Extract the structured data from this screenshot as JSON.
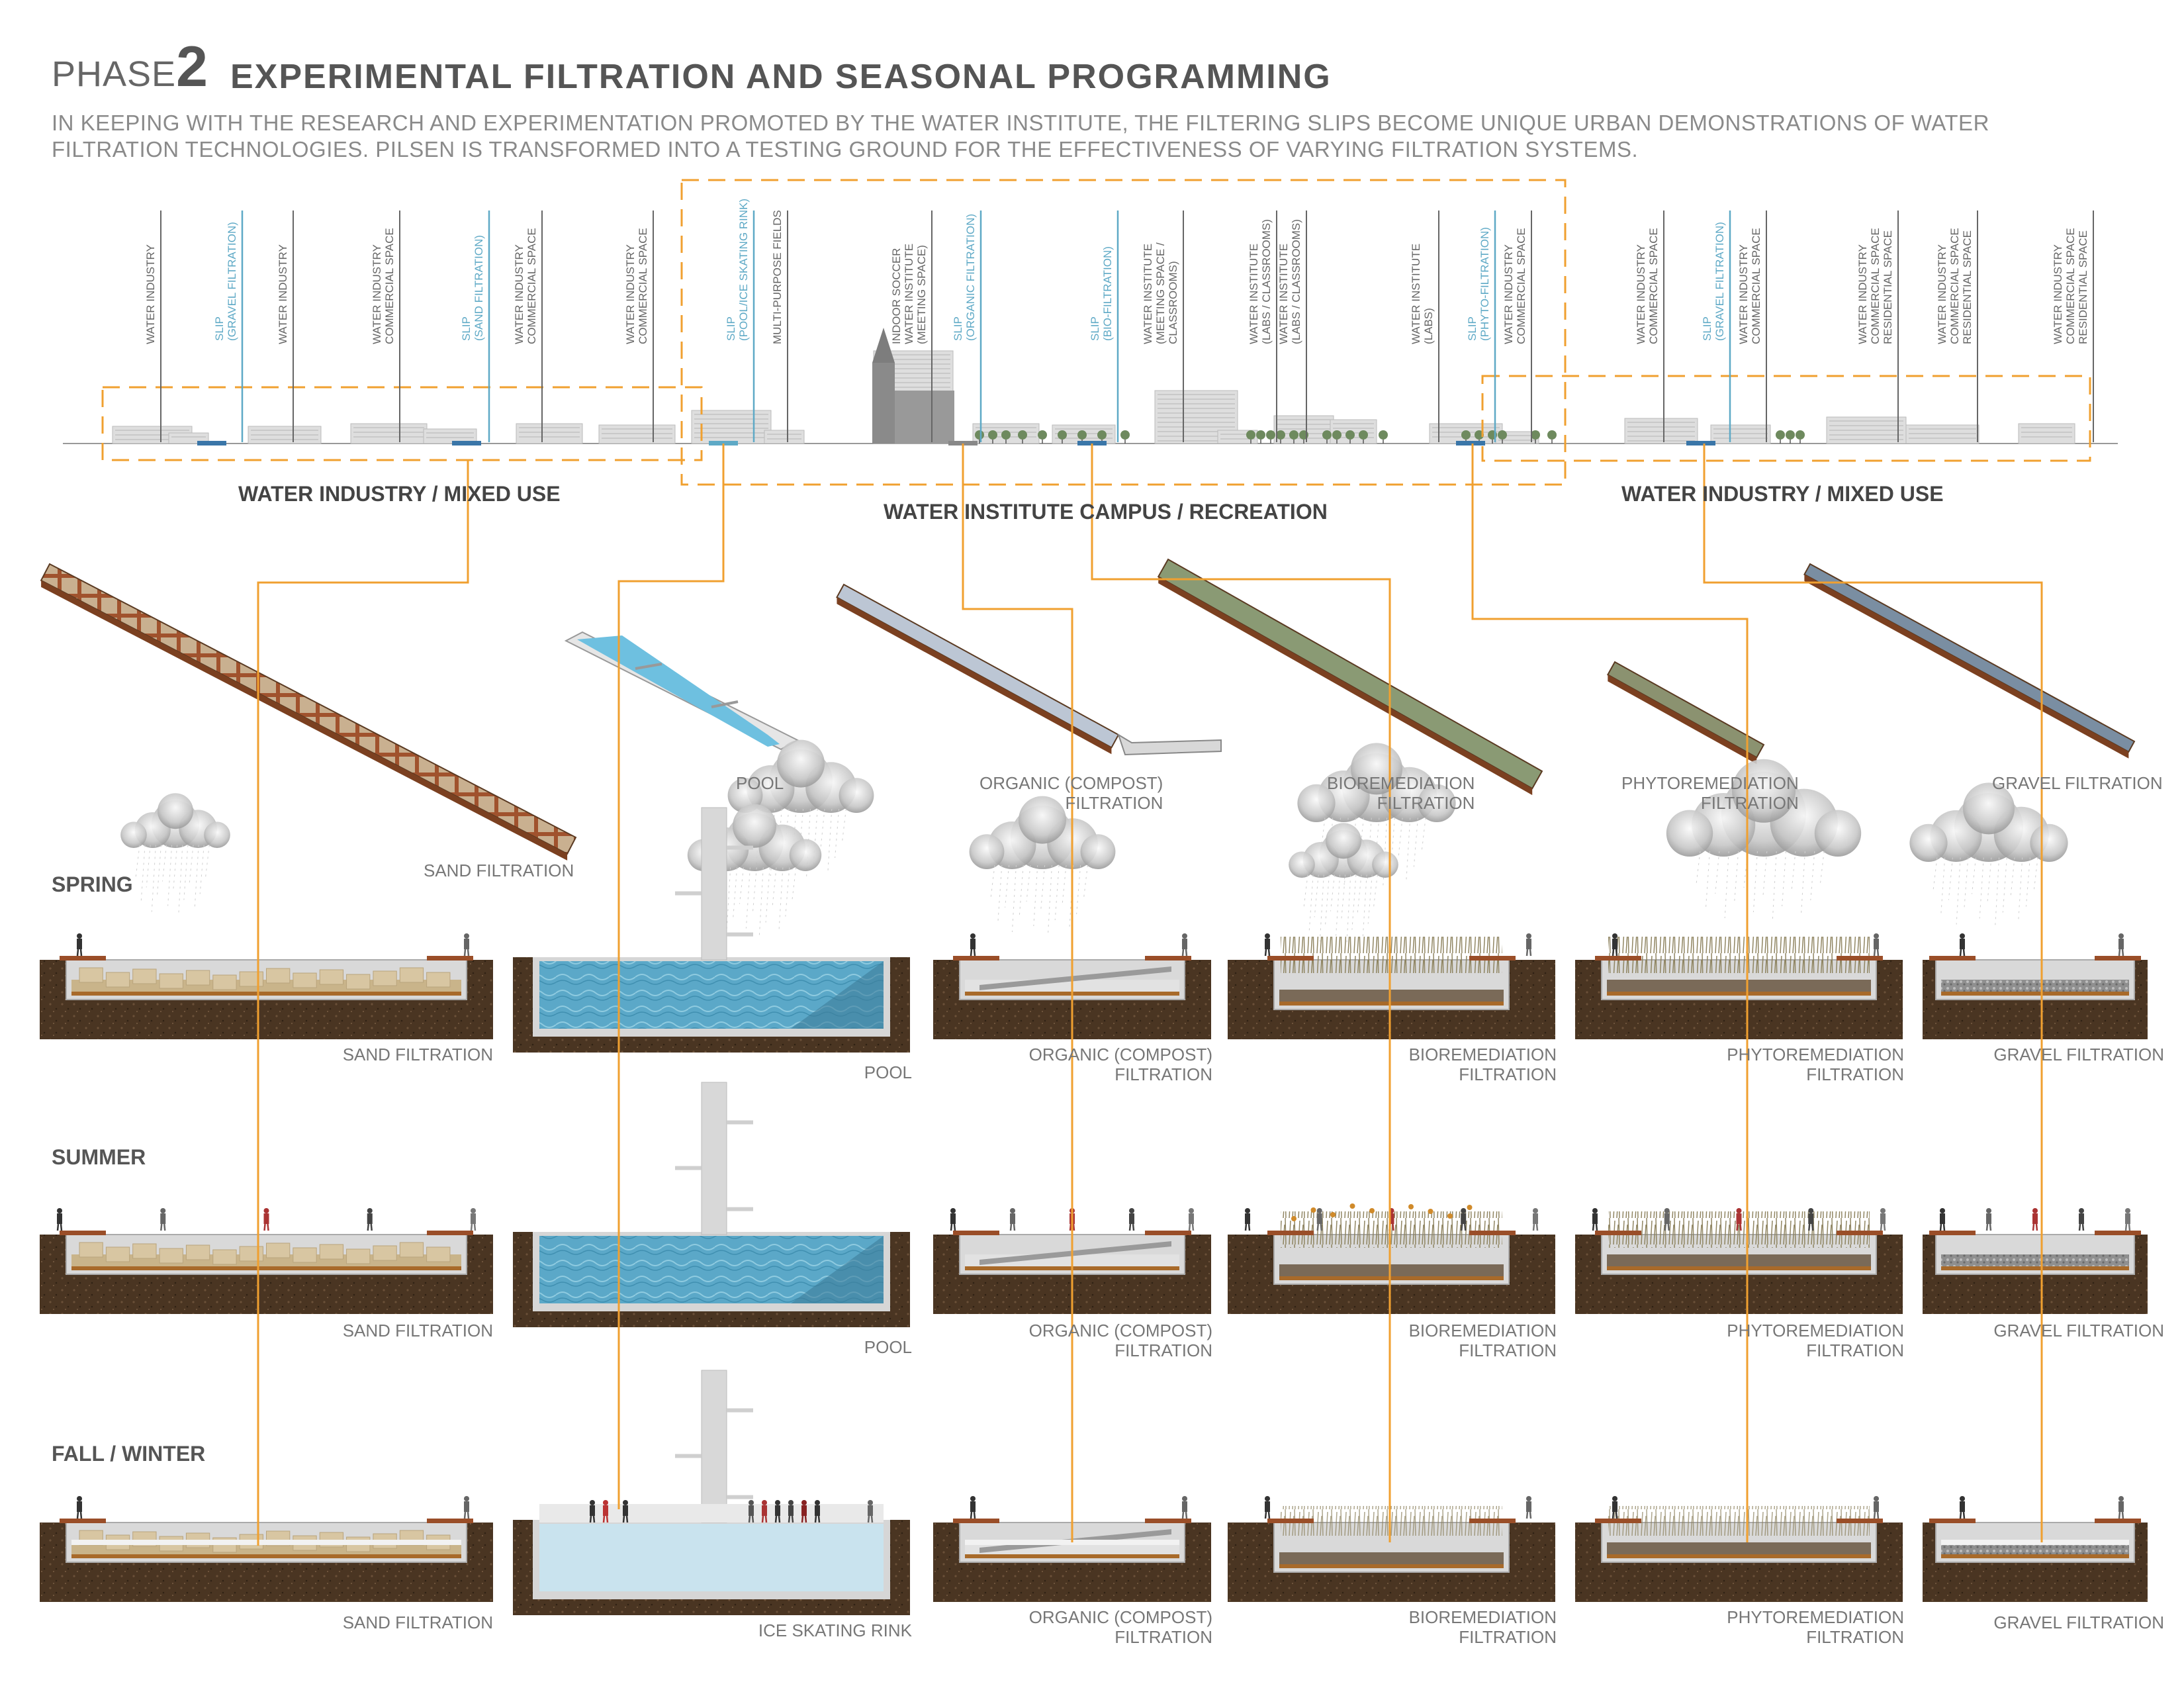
{
  "header": {
    "phase_word": "PHASE",
    "phase_number": "2",
    "title": "EXPERIMENTAL FILTRATION AND SEASONAL PROGRAMMING",
    "intro": "IN KEEPING WITH THE RESEARCH AND EXPERIMENTATION PROMOTED BY THE WATER INSTITUTE, THE FILTERING SLIPS BECOME UNIQUE URBAN DEMONSTRATIONS OF WATER FILTRATION TECHNOLOGIES.  PILSEN IS TRANSFORMED INTO A TESTING GROUND FOR THE EFFECTIVENESS OF VARYING FILTRATION SYSTEMS."
  },
  "site_labels": [
    {
      "text": "WATER INDUSTRY",
      "type": "building"
    },
    {
      "text": "SLIP\n(GRAVEL FILTRATION)",
      "type": "slip"
    },
    {
      "text": "WATER INDUSTRY",
      "type": "building"
    },
    {
      "text": "WATER INDUSTRY\nCOMMERCIAL SPACE",
      "type": "building"
    },
    {
      "text": "SLIP\n(SAND FILTRATION)",
      "type": "slip"
    },
    {
      "text": "WATER INDUSTRY\nCOMMERCIAL SPACE",
      "type": "building"
    },
    {
      "text": "WATER INDUSTRY\nCOMMERCIAL SPACE",
      "type": "building"
    },
    {
      "text": "SLIP\n(POOL/ICE SKATING RINK)",
      "type": "slip"
    },
    {
      "text": "MULTI-PURPOSE FIELDS",
      "type": "building"
    },
    {
      "text": "INDOOR SOCCER\nWATER INSTITUTE\n(MEETING SPACE)",
      "type": "building"
    },
    {
      "text": "SLIP\n(ORGANIC FILTRATION)",
      "type": "slip"
    },
    {
      "text": "SLIP\n(BIO-FILTRATION)",
      "type": "slip"
    },
    {
      "text": "WATER INSTITUTE\n(MEETING SPACE /\nCLASSROOMS)",
      "type": "building"
    },
    {
      "text": "WATER INSTITUTE\n(LABS / CLASSROOMS)",
      "type": "building"
    },
    {
      "text": "WATER INSTITUTE\n(LABS / CLASSROOMS)",
      "type": "building"
    },
    {
      "text": "WATER INSTITUTE\n(LABS)",
      "type": "building"
    },
    {
      "text": "SLIP\n(PHYTO-FILTRATION)",
      "type": "slip"
    },
    {
      "text": "WATER INDUSTRY\nCOMMERCIAL SPACE",
      "type": "building"
    },
    {
      "text": "WATER INDUSTRY\nCOMMERCIAL SPACE",
      "type": "building"
    },
    {
      "text": "SLIP\n(GRAVEL FILTRATION)",
      "type": "slip"
    },
    {
      "text": "WATER INDUSTRY\nCOMMERCIAL SPACE",
      "type": "building"
    },
    {
      "text": "WATER INDUSTRY\nCOMMERCIAL SPACE\nRESIDENTIAL SPACE",
      "type": "building"
    },
    {
      "text": "WATER INDUSTRY\nCOMMERCIAL SPACE\nRESIDENTIAL SPACE",
      "type": "building"
    },
    {
      "text": "WATER INDUSTRY\nCOMMERCIAL SPACE\nRESIDENTIAL SPACE",
      "type": "building"
    }
  ],
  "zones": {
    "left": "WATER INDUSTRY / MIXED USE",
    "center": "WATER INSTITUTE CAMPUS / RECREATION",
    "right": "WATER INDUSTRY / MIXED USE"
  },
  "axon_labels": [
    "SAND FILTRATION",
    "POOL",
    "ORGANIC (COMPOST)\nFILTRATION",
    "BIOREMEDIATION\nFILTRATION",
    "PHYTOREMEDIATION\nFILTRATION",
    "GRAVEL FILTRATION"
  ],
  "seasons": [
    {
      "name": "SPRING",
      "captions": [
        "SAND FILTRATION",
        "POOL",
        "ORGANIC (COMPOST)\nFILTRATION",
        "BIOREMEDIATION\nFILTRATION",
        "PHYTOREMEDIATION\nFILTRATION",
        "GRAVEL FILTRATION"
      ]
    },
    {
      "name": "SUMMER",
      "captions": [
        "SAND FILTRATION",
        "POOL",
        "ORGANIC (COMPOST)\nFILTRATION",
        "BIOREMEDIATION\nFILTRATION",
        "PHYTOREMEDIATION\nFILTRATION",
        "GRAVEL FILTRATION"
      ]
    },
    {
      "name": "FALL / WINTER",
      "captions": [
        "SAND FILTRATION",
        "ICE SKATING RINK",
        "ORGANIC (COMPOST)\nFILTRATION",
        "BIOREMEDIATION\nFILTRATION",
        "PHYTOREMEDIATION\nFILTRATION",
        "GRAVEL FILTRATION"
      ]
    }
  ],
  "colors": {
    "accent_orange": "#f0a030",
    "slip_blue": "#5ea9c6",
    "soil": "#4a3522",
    "steel": "#9a4e28",
    "water": "#5ba8c8",
    "ice": "#c9e3ee",
    "concrete": "#d4d4d4"
  }
}
